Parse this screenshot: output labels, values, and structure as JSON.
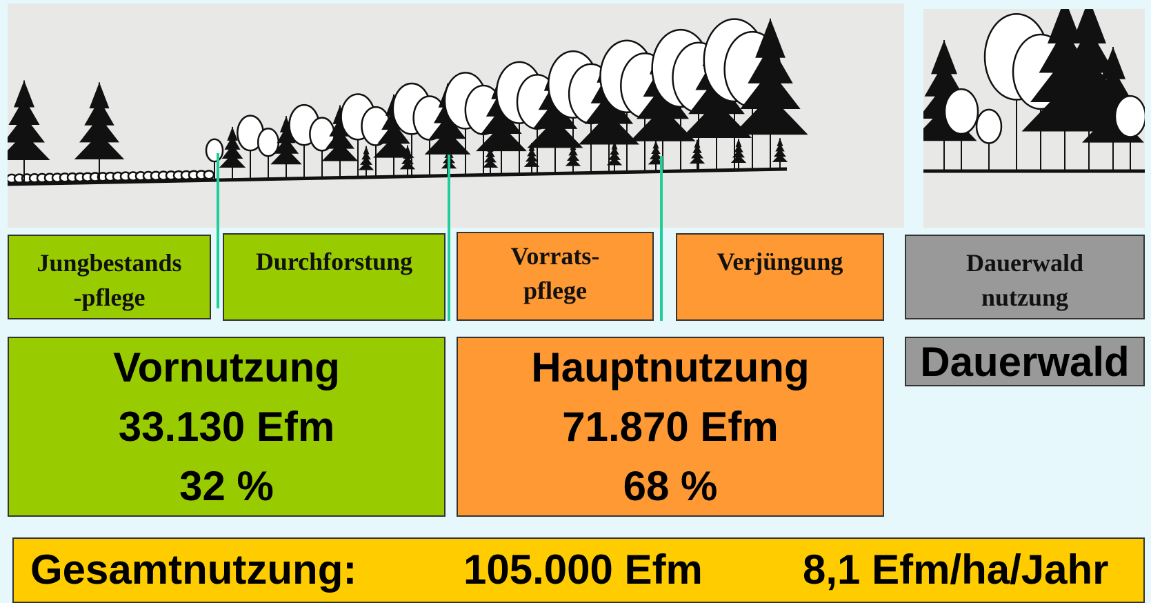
{
  "stages": [
    {
      "lines": [
        "Jungbestands",
        "-pflege"
      ]
    },
    {
      "lines": [
        "Durchforstung"
      ]
    },
    {
      "lines": [
        "Vorrats-",
        "pflege"
      ]
    },
    {
      "lines": [
        "Verjüngung"
      ]
    },
    {
      "lines": [
        "Dauerwald",
        "nutzung"
      ]
    }
  ],
  "summary": [
    {
      "title": "Vornutzung",
      "amount": "33.130 Efm",
      "share": "32 %"
    },
    {
      "title": "Hauptnutzung",
      "amount": "71.870 Efm",
      "share": "68 %"
    },
    {
      "title": "Dauerwald"
    }
  ],
  "total": {
    "label": "Gesamtnutzung:",
    "amount": "105.000 Efm",
    "rate": "8,1 Efm/ha/Jahr"
  }
}
